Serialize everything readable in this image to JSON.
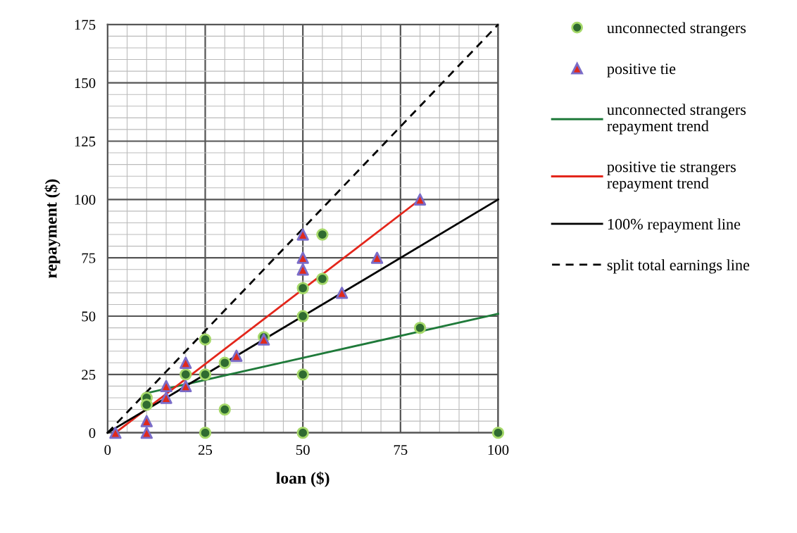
{
  "chart_data": {
    "type": "scatter",
    "xlabel": "loan ($)",
    "ylabel": "repayment ($)",
    "xlim": [
      0,
      100
    ],
    "ylim": [
      0,
      175
    ],
    "xticks": [
      0,
      {
        "value": 5,
        "label": null
      },
      {
        "value": 10,
        "label": null
      },
      {
        "value": 15,
        "label": null
      },
      {
        "value": 20,
        "label": null
      },
      25,
      {
        "value": 30,
        "label": null
      },
      {
        "value": 35,
        "label": null
      },
      {
        "value": 40,
        "label": null
      },
      {
        "value": 45,
        "label": null
      },
      50,
      {
        "value": 55,
        "label": null
      },
      {
        "value": 60,
        "label": null
      },
      {
        "value": 65,
        "label": null
      },
      {
        "value": 70,
        "label": null
      },
      75,
      {
        "value": 80,
        "label": null
      },
      {
        "value": 85,
        "label": null
      },
      {
        "value": 90,
        "label": null
      },
      {
        "value": 95,
        "label": null
      },
      100
    ],
    "yticks": [
      0,
      {
        "value": 5,
        "label": null
      },
      {
        "value": 10,
        "label": null
      },
      {
        "value": 15,
        "label": null
      },
      {
        "value": 20,
        "label": null
      },
      25,
      {
        "value": 30,
        "label": null
      },
      {
        "value": 35,
        "label": null
      },
      {
        "value": 40,
        "label": null
      },
      {
        "value": 45,
        "label": null
      },
      50,
      {
        "value": 55,
        "label": null
      },
      {
        "value": 60,
        "label": null
      },
      {
        "value": 65,
        "label": null
      },
      {
        "value": 70,
        "label": null
      },
      75,
      {
        "value": 80,
        "label": null
      },
      {
        "value": 85,
        "label": null
      },
      {
        "value": 90,
        "label": null
      },
      {
        "value": 95,
        "label": null
      },
      100,
      {
        "value": 105,
        "label": null
      },
      {
        "value": 110,
        "label": null
      },
      {
        "value": 115,
        "label": null
      },
      {
        "value": 120,
        "label": null
      },
      125,
      {
        "value": 130,
        "label": null
      },
      {
        "value": 135,
        "label": null
      },
      {
        "value": 140,
        "label": null
      },
      {
        "value": 145,
        "label": null
      },
      150,
      {
        "value": 155,
        "label": null
      },
      {
        "value": 160,
        "label": null
      },
      {
        "value": 165,
        "label": null
      },
      {
        "value": 170,
        "label": null
      },
      175
    ],
    "grid": true,
    "legend": "right",
    "series": [
      {
        "name": "unconnected strangers",
        "marker": "circle",
        "color": "#2f6b30",
        "x": [
          10,
          10,
          20,
          25,
          25,
          25,
          30,
          30,
          40,
          50,
          50,
          50,
          50,
          55,
          55,
          80,
          100
        ],
        "values": [
          15,
          12,
          25,
          40,
          25,
          0,
          30,
          10,
          41,
          62,
          50,
          25,
          0,
          85,
          66,
          45,
          0
        ]
      },
      {
        "name": "positive tie",
        "marker": "triangle",
        "color": "#e02a1c",
        "x": [
          2,
          10,
          10,
          15,
          15,
          20,
          20,
          33,
          40,
          50,
          50,
          50,
          60,
          69,
          80
        ],
        "values": [
          0,
          0,
          5,
          20,
          15,
          30,
          20,
          33,
          40,
          85,
          75,
          70,
          60,
          75,
          100
        ]
      },
      {
        "name": "unconnected strangers\nrepayment trend",
        "type": "line",
        "line_style": "solid",
        "color": "#1f7a3a",
        "x": [
          10,
          100
        ],
        "values": [
          17,
          51
        ]
      },
      {
        "name": "positive tie strangers\nrepayment trend",
        "type": "line",
        "line_style": "solid",
        "color": "#e3261b",
        "x": [
          2,
          80
        ],
        "values": [
          0,
          100
        ]
      },
      {
        "name": "100% repayment line",
        "type": "line",
        "line_style": "solid",
        "color": "#000000",
        "x": [
          0,
          100
        ],
        "values": [
          0,
          100
        ]
      },
      {
        "name": "split total earnings line",
        "type": "line",
        "line_style": "dashed",
        "color": "#000000",
        "x": [
          0,
          100
        ],
        "values": [
          0,
          175
        ]
      }
    ]
  }
}
